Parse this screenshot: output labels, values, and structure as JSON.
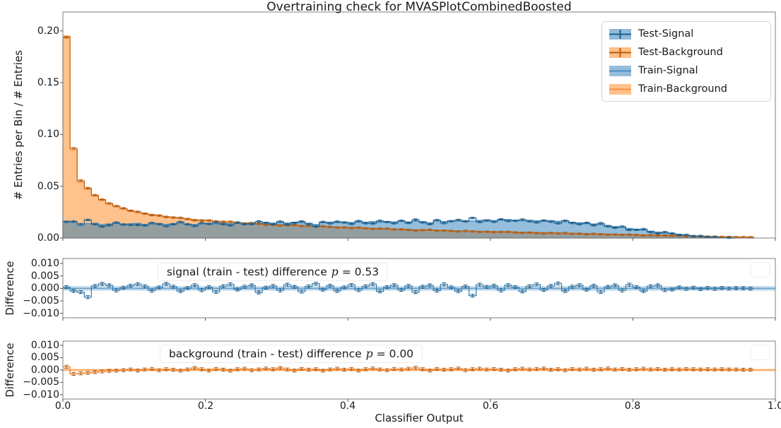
{
  "figure": {
    "title": "Overtraining check for MVASPlotCombinedBoosted",
    "xlabel": "Classifier Output",
    "xtick_labels": [
      "0.0",
      "0.2",
      "0.4",
      "0.6",
      "0.8",
      "1.0"
    ],
    "xticks": [
      0.0,
      0.2,
      0.4,
      0.6,
      0.8,
      1.0
    ]
  },
  "chart_data": [
    {
      "type": "area",
      "subtype": "step-histogram",
      "title": "Overtraining check for MVASPlotCombinedBoosted",
      "ylabel": "# Entries per Bin / # Entries",
      "xlim": [
        0.0,
        1.0
      ],
      "ylim": [
        0.0,
        0.2182
      ],
      "yticks": [
        0.2,
        0.15,
        0.1,
        0.05,
        0.0
      ],
      "ytick_labels": [
        "0.20",
        "0.15",
        "0.10",
        "0.05",
        "0.00"
      ],
      "bin_width": 0.01,
      "legend_position": "upper right",
      "legend": [
        "Test-Signal",
        "Test-Background",
        "Train-Signal",
        "Train-Background"
      ],
      "series": [
        {
          "name": "Test-Signal",
          "marker": "errorbar",
          "color": "#1d5f8e",
          "swatch_fill": "rgba(31,119,180,0.5)",
          "values_rule": "Train-Signal minus signal difference"
        },
        {
          "name": "Test-Background",
          "marker": "errorbar",
          "color": "#b85c0d",
          "swatch_fill": "rgba(255,127,14,0.5)",
          "values_rule": "Train-Background minus background difference"
        },
        {
          "name": "Train-Signal",
          "marker": "filled-step",
          "color": "#4e8fbf",
          "fill": "rgba(31,119,180,0.48)",
          "values": [
            0.0162,
            0.015,
            0.0119,
            0.014,
            0.0143,
            0.0129,
            0.0136,
            0.0141,
            0.0133,
            0.0138,
            0.0142,
            0.0131,
            0.0136,
            0.0139,
            0.0133,
            0.014,
            0.0144,
            0.0134,
            0.013,
            0.0137,
            0.0141,
            0.0136,
            0.0143,
            0.0138,
            0.0145,
            0.014,
            0.0147,
            0.0143,
            0.0149,
            0.0144,
            0.015,
            0.0146,
            0.0152,
            0.0147,
            0.0143,
            0.0131,
            0.015,
            0.0153,
            0.0148,
            0.0154,
            0.015,
            0.0156,
            0.0152,
            0.0158,
            0.0153,
            0.0159,
            0.0155,
            0.0161,
            0.0156,
            0.0162,
            0.0158,
            0.0147,
            0.0164,
            0.016,
            0.0166,
            0.0163,
            0.0168,
            0.0164,
            0.017,
            0.0175,
            0.0168,
            0.0172,
            0.0178,
            0.0171,
            0.0166,
            0.0171,
            0.0167,
            0.0163,
            0.0168,
            0.0162,
            0.0157,
            0.0152,
            0.0147,
            0.0141,
            0.0135,
            0.0128,
            0.012,
            0.0111,
            0.0102,
            0.0093,
            0.0084,
            0.0075,
            0.0066,
            0.0057,
            0.0049,
            0.0041,
            0.0034,
            0.0027,
            0.0021,
            0.0016,
            0.0011,
            0.0007,
            0.0004,
            0.0002,
            0.0001,
            0,
            0,
            0,
            0,
            0
          ]
        },
        {
          "name": "Train-Background",
          "marker": "filled-step",
          "color": "#ff9140",
          "fill": "rgba(255,127,14,0.48)",
          "values": [
            0.195,
            0.085,
            0.054,
            0.047,
            0.0405,
            0.0365,
            0.033,
            0.0305,
            0.0285,
            0.0265,
            0.025,
            0.0237,
            0.0226,
            0.0216,
            0.0207,
            0.0199,
            0.0192,
            0.0185,
            0.0179,
            0.0173,
            0.0168,
            0.0163,
            0.0158,
            0.0154,
            0.015,
            0.0146,
            0.0142,
            0.0139,
            0.0135,
            0.0132,
            0.0129,
            0.0126,
            0.0123,
            0.012,
            0.0117,
            0.0114,
            0.0111,
            0.0109,
            0.0106,
            0.0104,
            0.0101,
            0.0099,
            0.0096,
            0.0094,
            0.0092,
            0.0089,
            0.0087,
            0.0085,
            0.0083,
            0.0081,
            0.0079,
            0.0077,
            0.0075,
            0.0073,
            0.0071,
            0.0069,
            0.0068,
            0.0066,
            0.0064,
            0.0063,
            0.0061,
            0.006,
            0.0058,
            0.0057,
            0.0055,
            0.0054,
            0.0052,
            0.0051,
            0.005,
            0.0048,
            0.0047,
            0.0045,
            0.0044,
            0.0042,
            0.0041,
            0.0039,
            0.0038,
            0.0036,
            0.0035,
            0.0033,
            0.0032,
            0.003,
            0.0029,
            0.0027,
            0.0026,
            0.0024,
            0.0023,
            0.0021,
            0.002,
            0.0018,
            0.0016,
            0.0014,
            0.0013,
            0.0011,
            0.001,
            0.0009,
            0.0008,
            0,
            0,
            0
          ]
        }
      ]
    },
    {
      "type": "line",
      "subtype": "step-difference",
      "name": "signal (train - test) difference",
      "ylabel": "Difference",
      "annotation": {
        "text": "signal (train - test) difference",
        "p_symbol": "p",
        "p_value": "= 0.53"
      },
      "ylim": [
        -0.0118,
        0.012
      ],
      "yticks": [
        0.01,
        0.005,
        0.0,
        -0.005,
        -0.01
      ],
      "ytick_labels": [
        "0.010",
        "0.005",
        "0.000",
        "−0.005",
        "−0.010"
      ],
      "band_halfwidth": 0.0009,
      "color": "#2979b0",
      "errorbar_color": "#174f7a",
      "band_color": "rgba(31,119,180,0.28)",
      "center_line_color": "rgba(31,119,180,0.55)",
      "values": [
        0.0005,
        -0.001,
        -0.0015,
        -0.0035,
        0.001,
        0.0018,
        0.0012,
        -0.0008,
        0.0003,
        0.0011,
        0.0017,
        0.0009,
        -0.0009,
        0.0004,
        0.0018,
        0.0007,
        -0.0011,
        0.0002,
        0.0013,
        -0.0007,
        0.0005,
        -0.0014,
        0.0009,
        0.0016,
        -0.0004,
        0.0007,
        0.0012,
        -0.0016,
        0.0003,
        0.001,
        -0.0008,
        0.0015,
        0.0006,
        -0.0013,
        0.0008,
        0.0019,
        -0.0005,
        0.0011,
        -0.001,
        0.0004,
        0.0014,
        -0.0007,
        0.0009,
        0.0017,
        -0.0012,
        0.0005,
        0.0013,
        -0.0006,
        0.001,
        -0.0015,
        0.0007,
        0.0012,
        -0.0009,
        0.0016,
        0.0004,
        -0.0011,
        0.0008,
        -0.0029,
        0.0015,
        0.0006,
        0.0011,
        -0.0008,
        0.0013,
        0.0005,
        -0.0012,
        0.0009,
        0.0016,
        -0.0006,
        0.001,
        0.002,
        -0.001,
        0.0007,
        0.0013,
        -0.0005,
        0.0011,
        -0.0014,
        0.0006,
        0.0012,
        -0.0008,
        0.0015,
        0.0005,
        -0.0011,
        0.0009,
        0.0012,
        -0.0007,
        -0.0004,
        0.0004,
        -0.0002,
        0.0003,
        -0.0003,
        0.0002,
        -0.0002,
        0.0002,
        -0.0001,
        0.0001,
        0.0001,
        -0.0001,
        0,
        0,
        0
      ]
    },
    {
      "type": "line",
      "subtype": "step-difference",
      "name": "background (train - test) difference",
      "ylabel": "Difference",
      "xlabel": "Classifier Output",
      "annotation": {
        "text": "background (train - test) difference",
        "p_symbol": "p",
        "p_value": "= 0.00"
      },
      "ylim": [
        -0.0118,
        0.0117
      ],
      "yticks": [
        0.01,
        0.005,
        0.0,
        -0.005,
        -0.01
      ],
      "ytick_labels": [
        "0.010",
        "0.005",
        "0.000",
        "−0.005",
        "−0.010"
      ],
      "band_halfwidth": 0.0005,
      "color": "#e8720c",
      "errorbar_color": "#a84f08",
      "band_color": "rgba(255,127,14,0.30)",
      "center_line_color": "rgba(255,140,40,0.7)",
      "values": [
        0.0013,
        -0.0016,
        -0.0014,
        -0.0012,
        -0.0009,
        -0.0006,
        -0.0004,
        -0.0003,
        -0.0001,
        0.0002,
        -0.0002,
        0.0002,
        0.0004,
        -0.0001,
        0.0003,
        0.0001,
        -0.0003,
        0.0002,
        0.0008,
        0.0003,
        -0.0002,
        0.0004,
        0.0001,
        -0.0003,
        0.0003,
        0.0005,
        -0.0001,
        0.0002,
        0.0006,
        0.0003,
        0.0008,
        0.0002,
        -0.0002,
        0.0004,
        0.0001,
        0.0003,
        -0.0003,
        0.0002,
        0.0005,
        0.0001,
        0.0004,
        -0.0002,
        0.0003,
        0.0006,
        0.0002,
        -0.0001,
        0.0004,
        0.0002,
        0.0005,
        0.0009,
        0.0003,
        -0.0002,
        0.0004,
        0.0001,
        0.0003,
        0.0006,
        -0.0001,
        0.0003,
        0.0005,
        0.0002,
        0.0004,
        0.0001,
        -0.0002,
        0.0003,
        0.0005,
        0.0002,
        0.0004,
        0.0006,
        0.0001,
        0.0003,
        -0.0001,
        0.0004,
        0.0002,
        0.0005,
        0.0001,
        0.0003,
        0.0006,
        0.0002,
        0.0004,
        0.0001,
        0.0003,
        0.0005,
        0.0002,
        0.0004,
        0.0001,
        0.0003,
        0.0002,
        0.0004,
        0.0003,
        0.0002,
        0.0003,
        0.0002,
        0.0003,
        0.0002,
        0.0002,
        0.0001,
        0.0001,
        0,
        0,
        0
      ]
    }
  ]
}
